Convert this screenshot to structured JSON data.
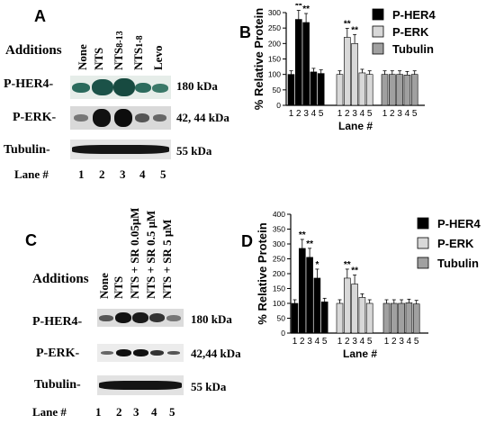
{
  "panelA": {
    "letter": "A",
    "additions_label": "Additions",
    "lanes": [
      "None",
      "NTS",
      "NTS",
      "NTS",
      "Levo"
    ],
    "lane_sub": [
      "",
      "",
      "8-13",
      "1-8",
      ""
    ],
    "rows": [
      {
        "label": "P-HER4-",
        "size": "180 kDa"
      },
      {
        "label": "P-ERK-",
        "size": "42, 44 kDa"
      },
      {
        "label": "Tubulin-",
        "size": "55 kDa"
      }
    ],
    "lane_label": "Lane #",
    "lane_numbers": [
      "1",
      "2",
      "3",
      "4",
      "5"
    ],
    "colors": {
      "pher4_band": "#1f5d52",
      "dark_band": "#111111"
    }
  },
  "panelC": {
    "letter": "C",
    "additions_label": "Additions",
    "lanes": [
      "None",
      "NTS",
      "NTS + SR 0.05μM",
      "NTS + SR 0.5  μM",
      "NTS + SR 5 μM"
    ],
    "rows": [
      {
        "label": "P-HER4-",
        "size": "180 kDa"
      },
      {
        "label": "P-ERK-",
        "size": "42,44 kDa"
      },
      {
        "label": "Tubulin-",
        "size": "55 kDa"
      }
    ],
    "lane_label": "Lane #",
    "lane_numbers": [
      "1",
      "2",
      "3",
      "4",
      "5"
    ]
  },
  "chart_data": [
    {
      "panel": "B",
      "type": "bar",
      "ylabel": "% Relative Protein",
      "xlabel": "Lane #",
      "ylim": [
        0,
        300
      ],
      "yticks": [
        0,
        50,
        100,
        150,
        200,
        250,
        300
      ],
      "categories": [
        "1",
        "2",
        "3",
        "4",
        "5"
      ],
      "series": [
        {
          "name": "P-HER4",
          "values": [
            100,
            278,
            268,
            108,
            103
          ],
          "sig": [
            "",
            "**",
            "**",
            "",
            ""
          ],
          "color": "#000000"
        },
        {
          "name": "P-ERK",
          "values": [
            100,
            220,
            200,
            105,
            100
          ],
          "sig": [
            "",
            "**",
            "**",
            "",
            ""
          ],
          "color": "#d8d8d8"
        },
        {
          "name": "Tubulin",
          "values": [
            100,
            100,
            100,
            98,
            100
          ],
          "sig": [
            "",
            "",
            "",
            "",
            ""
          ],
          "color": "#a0a0a0"
        }
      ],
      "legend": "top-right"
    },
    {
      "panel": "D",
      "type": "bar",
      "ylabel": "% Relative Protein",
      "xlabel": "Lane #",
      "ylim": [
        0,
        400
      ],
      "yticks": [
        0,
        50,
        100,
        150,
        200,
        250,
        300,
        350,
        400
      ],
      "categories": [
        "1",
        "2",
        "3",
        "4",
        "5"
      ],
      "series": [
        {
          "name": "P-HER4",
          "values": [
            100,
            285,
            255,
            185,
            105
          ],
          "sig": [
            "",
            "**",
            "**",
            "*",
            ""
          ],
          "color": "#000000"
        },
        {
          "name": "P-ERK",
          "values": [
            100,
            185,
            165,
            120,
            100
          ],
          "sig": [
            "",
            "**",
            "**",
            "",
            ""
          ],
          "color": "#d8d8d8"
        },
        {
          "name": "Tubulin",
          "values": [
            100,
            100,
            100,
            102,
            98
          ],
          "sig": [
            "",
            "",
            "",
            "",
            ""
          ],
          "color": "#a0a0a0"
        }
      ],
      "legend": "top-right"
    }
  ]
}
